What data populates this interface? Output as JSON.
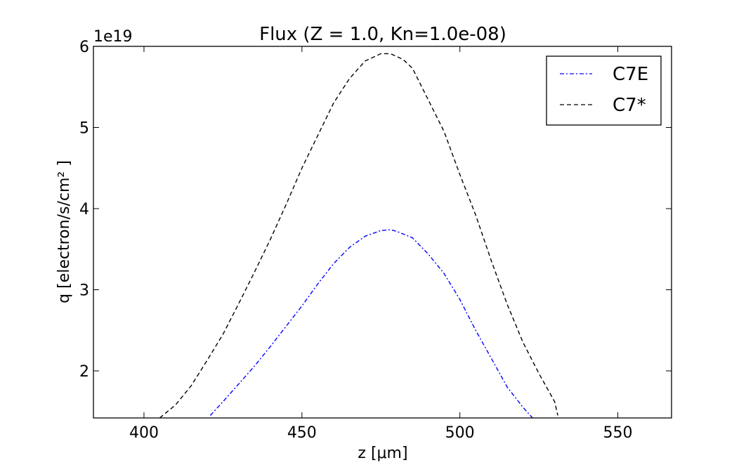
{
  "chart_data": {
    "type": "line",
    "title": "Flux (Z = 1.0, Kn=1.0e-08)",
    "xlabel": "z [μm]",
    "ylabel": "q [electron/s/cm² ]",
    "offset_text": "1e19",
    "xlim": [
      384,
      567
    ],
    "ylim": [
      1.42,
      6.0
    ],
    "y_scale": 1e+19,
    "xticks": [
      400,
      450,
      500,
      550
    ],
    "xtick_labels": [
      "400",
      "450",
      "500",
      "550"
    ],
    "yticks": [
      2,
      3,
      4,
      5,
      6
    ],
    "ytick_labels": [
      "2",
      "3",
      "4",
      "5",
      "6"
    ],
    "grid": false,
    "legend_position": "top-right",
    "series": [
      {
        "name": "C7E",
        "color": "#0000ff",
        "style": "dashdot",
        "x": [
          421,
          425,
          430,
          435,
          440,
          445,
          450,
          455,
          460,
          465,
          470,
          475,
          478,
          480,
          485,
          490,
          495,
          500,
          505,
          510,
          515,
          520,
          523
        ],
        "y": [
          1.45,
          1.62,
          1.84,
          2.06,
          2.3,
          2.55,
          2.8,
          3.07,
          3.32,
          3.52,
          3.66,
          3.73,
          3.74,
          3.72,
          3.64,
          3.44,
          3.2,
          2.88,
          2.5,
          2.15,
          1.8,
          1.55,
          1.42
        ]
      },
      {
        "name": "C7*",
        "color": "#000000",
        "style": "dashed",
        "x": [
          405,
          410,
          415,
          420,
          425,
          430,
          435,
          440,
          445,
          450,
          455,
          460,
          465,
          470,
          475,
          478,
          482,
          485,
          490,
          495,
          500,
          505,
          510,
          515,
          520,
          525,
          530,
          531
        ],
        "y": [
          1.42,
          1.58,
          1.82,
          2.13,
          2.45,
          2.83,
          3.22,
          3.62,
          4.05,
          4.5,
          4.9,
          5.3,
          5.6,
          5.82,
          5.91,
          5.91,
          5.84,
          5.73,
          5.34,
          4.95,
          4.42,
          3.92,
          3.35,
          2.82,
          2.35,
          1.97,
          1.62,
          1.45
        ]
      }
    ]
  }
}
